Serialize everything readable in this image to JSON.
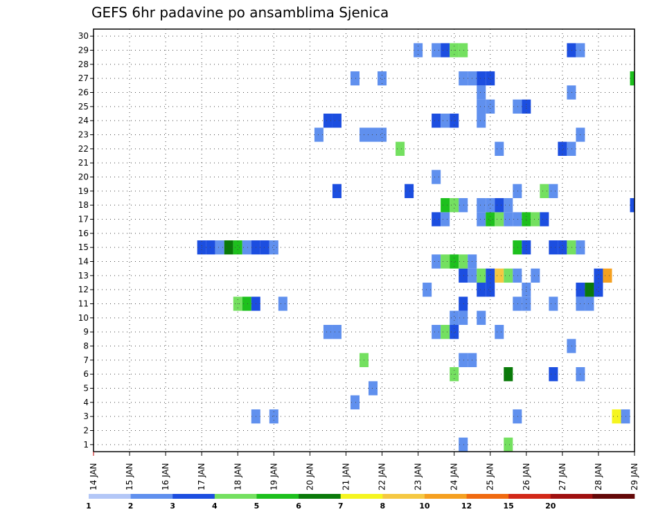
{
  "chart_data": {
    "type": "heatmap",
    "title": "GEFS 6hr padavine po ansamblima Sjenica",
    "x_labels": [
      "14 JAN",
      "15 JAN",
      "16 JAN",
      "17 JAN",
      "18 JAN",
      "19 JAN",
      "20 JAN",
      "21 JAN",
      "22 JAN",
      "23 JAN",
      "24 JAN",
      "25 JAN",
      "26 JAN",
      "27 JAN",
      "28 JAN",
      "29 JAN"
    ],
    "y_labels": [
      "1",
      "2",
      "3",
      "4",
      "5",
      "6",
      "7",
      "8",
      "9",
      "10",
      "11",
      "12",
      "13",
      "14",
      "15",
      "16",
      "17",
      "18",
      "19",
      "20",
      "21",
      "22",
      "23",
      "24",
      "25",
      "26",
      "27",
      "28",
      "29",
      "30"
    ],
    "ensemble_members": 30,
    "time_steps": 61,
    "step_hours": 6,
    "color_levels": [
      "1",
      "2",
      "3",
      "4",
      "5",
      "6",
      "7",
      "8",
      "10",
      "12",
      "15",
      "20"
    ],
    "color_scale": [
      "#b3c7f7",
      "#6090ee",
      "#1c4ee0",
      "#74e060",
      "#1dc01d",
      "#0a7a0a",
      "#f5f520",
      "#f5c842",
      "#f5a020",
      "#f06a10",
      "#d22818",
      "#a01010",
      "#640808"
    ],
    "cells": [
      {
        "m": 1,
        "t": 41,
        "v": 1.5
      },
      {
        "m": 1,
        "t": 46,
        "v": 3.5
      },
      {
        "m": 3,
        "t": 18,
        "v": 1.5
      },
      {
        "m": 3,
        "t": 20,
        "v": 1.5
      },
      {
        "m": 3,
        "t": 47,
        "v": 1.5
      },
      {
        "m": 3,
        "t": 58,
        "v": 6.5
      },
      {
        "m": 3,
        "t": 59,
        "v": 1.5
      },
      {
        "m": 4,
        "t": 29,
        "v": 1.5
      },
      {
        "m": 5,
        "t": 31,
        "v": 1.5
      },
      {
        "m": 6,
        "t": 40,
        "v": 3.5
      },
      {
        "m": 6,
        "t": 46,
        "v": 5.5
      },
      {
        "m": 6,
        "t": 51,
        "v": 2.5
      },
      {
        "m": 6,
        "t": 54,
        "v": 1.5
      },
      {
        "m": 7,
        "t": 30,
        "v": 3.5
      },
      {
        "m": 7,
        "t": 41,
        "v": 1.5
      },
      {
        "m": 7,
        "t": 42,
        "v": 1.5
      },
      {
        "m": 8,
        "t": 53,
        "v": 1.5
      },
      {
        "m": 9,
        "t": 26,
        "v": 1.5
      },
      {
        "m": 9,
        "t": 27,
        "v": 1.5
      },
      {
        "m": 9,
        "t": 38,
        "v": 1.5
      },
      {
        "m": 9,
        "t": 39,
        "v": 3.5
      },
      {
        "m": 9,
        "t": 40,
        "v": 2.5
      },
      {
        "m": 9,
        "t": 45,
        "v": 1.5
      },
      {
        "m": 10,
        "t": 40,
        "v": 1.5
      },
      {
        "m": 10,
        "t": 41,
        "v": 1.5
      },
      {
        "m": 10,
        "t": 43,
        "v": 1.5
      },
      {
        "m": 11,
        "t": 16,
        "v": 3.5
      },
      {
        "m": 11,
        "t": 17,
        "v": 4.5
      },
      {
        "m": 11,
        "t": 18,
        "v": 2.5
      },
      {
        "m": 11,
        "t": 21,
        "v": 1.5
      },
      {
        "m": 11,
        "t": 41,
        "v": 2.5
      },
      {
        "m": 11,
        "t": 47,
        "v": 1.5
      },
      {
        "m": 11,
        "t": 48,
        "v": 1.5
      },
      {
        "m": 11,
        "t": 51,
        "v": 1.5
      },
      {
        "m": 11,
        "t": 54,
        "v": 1.5
      },
      {
        "m": 11,
        "t": 55,
        "v": 1.5
      },
      {
        "m": 12,
        "t": 37,
        "v": 1.5
      },
      {
        "m": 12,
        "t": 43,
        "v": 2.5
      },
      {
        "m": 12,
        "t": 44,
        "v": 2.5
      },
      {
        "m": 12,
        "t": 48,
        "v": 1.5
      },
      {
        "m": 12,
        "t": 54,
        "v": 2.5
      },
      {
        "m": 12,
        "t": 55,
        "v": 5.5
      },
      {
        "m": 12,
        "t": 56,
        "v": 2.5
      },
      {
        "m": 13,
        "t": 41,
        "v": 2.5
      },
      {
        "m": 13,
        "t": 42,
        "v": 1.5
      },
      {
        "m": 13,
        "t": 43,
        "v": 3.5
      },
      {
        "m": 13,
        "t": 44,
        "v": 2.5
      },
      {
        "m": 13,
        "t": 45,
        "v": 7.5
      },
      {
        "m": 13,
        "t": 46,
        "v": 3.5
      },
      {
        "m": 13,
        "t": 47,
        "v": 1.5
      },
      {
        "m": 13,
        "t": 49,
        "v": 1.5
      },
      {
        "m": 13,
        "t": 56,
        "v": 2.5
      },
      {
        "m": 13,
        "t": 57,
        "v": 9
      },
      {
        "m": 14,
        "t": 38,
        "v": 1.5
      },
      {
        "m": 14,
        "t": 39,
        "v": 3.5
      },
      {
        "m": 14,
        "t": 40,
        "v": 4.5
      },
      {
        "m": 14,
        "t": 41,
        "v": 3.5
      },
      {
        "m": 14,
        "t": 42,
        "v": 1.5
      },
      {
        "m": 15,
        "t": 12,
        "v": 2.5
      },
      {
        "m": 15,
        "t": 13,
        "v": 2.5
      },
      {
        "m": 15,
        "t": 14,
        "v": 1.5
      },
      {
        "m": 15,
        "t": 15,
        "v": 5.5
      },
      {
        "m": 15,
        "t": 16,
        "v": 4.5
      },
      {
        "m": 15,
        "t": 17,
        "v": 1.5
      },
      {
        "m": 15,
        "t": 18,
        "v": 2.5
      },
      {
        "m": 15,
        "t": 19,
        "v": 2.5
      },
      {
        "m": 15,
        "t": 20,
        "v": 1.5
      },
      {
        "m": 15,
        "t": 47,
        "v": 4.5
      },
      {
        "m": 15,
        "t": 48,
        "v": 2.5
      },
      {
        "m": 15,
        "t": 51,
        "v": 2.5
      },
      {
        "m": 15,
        "t": 52,
        "v": 2.5
      },
      {
        "m": 15,
        "t": 53,
        "v": 3.5
      },
      {
        "m": 15,
        "t": 54,
        "v": 1.5
      },
      {
        "m": 17,
        "t": 38,
        "v": 2.5
      },
      {
        "m": 17,
        "t": 39,
        "v": 1.5
      },
      {
        "m": 17,
        "t": 43,
        "v": 1.5
      },
      {
        "m": 17,
        "t": 44,
        "v": 4.5
      },
      {
        "m": 17,
        "t": 45,
        "v": 3.5
      },
      {
        "m": 17,
        "t": 46,
        "v": 1.5
      },
      {
        "m": 17,
        "t": 47,
        "v": 1.5
      },
      {
        "m": 17,
        "t": 48,
        "v": 4.5
      },
      {
        "m": 17,
        "t": 49,
        "v": 3.5
      },
      {
        "m": 17,
        "t": 50,
        "v": 2.5
      },
      {
        "m": 18,
        "t": 39,
        "v": 4.5
      },
      {
        "m": 18,
        "t": 40,
        "v": 3.5
      },
      {
        "m": 18,
        "t": 41,
        "v": 1.5
      },
      {
        "m": 18,
        "t": 43,
        "v": 1.5
      },
      {
        "m": 18,
        "t": 44,
        "v": 1.5
      },
      {
        "m": 18,
        "t": 45,
        "v": 2.5
      },
      {
        "m": 18,
        "t": 46,
        "v": 1.5
      },
      {
        "m": 18,
        "t": 60,
        "v": 2.5
      },
      {
        "m": 19,
        "t": 27,
        "v": 2.5
      },
      {
        "m": 19,
        "t": 35,
        "v": 2.5
      },
      {
        "m": 19,
        "t": 47,
        "v": 1.5
      },
      {
        "m": 19,
        "t": 50,
        "v": 3.5
      },
      {
        "m": 19,
        "t": 51,
        "v": 1.5
      },
      {
        "m": 20,
        "t": 38,
        "v": 1.5
      },
      {
        "m": 22,
        "t": 34,
        "v": 3.5
      },
      {
        "m": 22,
        "t": 45,
        "v": 1.5
      },
      {
        "m": 22,
        "t": 52,
        "v": 2.5
      },
      {
        "m": 22,
        "t": 53,
        "v": 1.5
      },
      {
        "m": 23,
        "t": 25,
        "v": 1.5
      },
      {
        "m": 23,
        "t": 30,
        "v": 1.5
      },
      {
        "m": 23,
        "t": 31,
        "v": 1.5
      },
      {
        "m": 23,
        "t": 32,
        "v": 1.5
      },
      {
        "m": 23,
        "t": 54,
        "v": 1.5
      },
      {
        "m": 24,
        "t": 26,
        "v": 2.5
      },
      {
        "m": 24,
        "t": 27,
        "v": 2.5
      },
      {
        "m": 24,
        "t": 38,
        "v": 2.5
      },
      {
        "m": 24,
        "t": 39,
        "v": 1.5
      },
      {
        "m": 24,
        "t": 40,
        "v": 2.5
      },
      {
        "m": 24,
        "t": 43,
        "v": 1.5
      },
      {
        "m": 25,
        "t": 43,
        "v": 1.5
      },
      {
        "m": 25,
        "t": 44,
        "v": 1.5
      },
      {
        "m": 25,
        "t": 47,
        "v": 1.5
      },
      {
        "m": 25,
        "t": 48,
        "v": 2.5
      },
      {
        "m": 26,
        "t": 43,
        "v": 1.5
      },
      {
        "m": 26,
        "t": 53,
        "v": 1.5
      },
      {
        "m": 27,
        "t": 29,
        "v": 1.5
      },
      {
        "m": 27,
        "t": 32,
        "v": 1.5
      },
      {
        "m": 27,
        "t": 41,
        "v": 1.5
      },
      {
        "m": 27,
        "t": 42,
        "v": 1.5
      },
      {
        "m": 27,
        "t": 43,
        "v": 2.5
      },
      {
        "m": 27,
        "t": 44,
        "v": 2.5
      },
      {
        "m": 27,
        "t": 60,
        "v": 4.5
      },
      {
        "m": 29,
        "t": 36,
        "v": 1.5
      },
      {
        "m": 29,
        "t": 38,
        "v": 1.5
      },
      {
        "m": 29,
        "t": 39,
        "v": 2.5
      },
      {
        "m": 29,
        "t": 40,
        "v": 3.5
      },
      {
        "m": 29,
        "t": 41,
        "v": 3.5
      },
      {
        "m": 29,
        "t": 53,
        "v": 2.5
      },
      {
        "m": 29,
        "t": 54,
        "v": 1.5
      }
    ]
  }
}
